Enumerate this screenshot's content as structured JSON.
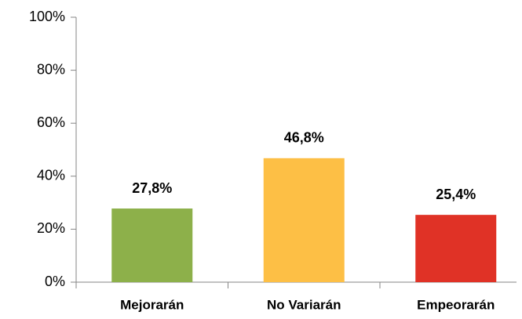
{
  "chart_data": {
    "type": "bar",
    "categories": [
      "Mejorarán",
      "No Variarán",
      "Empeorarán"
    ],
    "values": [
      27.8,
      46.8,
      25.4
    ],
    "value_labels": [
      "27,8%",
      "46,8%",
      "25,4%"
    ],
    "colors": [
      "#8db04a",
      "#fdbf45",
      "#e03226"
    ],
    "ylim": [
      0,
      100
    ],
    "yticks": [
      {
        "value": 0,
        "label": "0%"
      },
      {
        "value": 20,
        "label": "20%"
      },
      {
        "value": 40,
        "label": "40%"
      },
      {
        "value": 60,
        "label": "60%"
      },
      {
        "value": 80,
        "label": "80%"
      },
      {
        "value": 100,
        "label": "100%"
      }
    ],
    "grid": false
  }
}
